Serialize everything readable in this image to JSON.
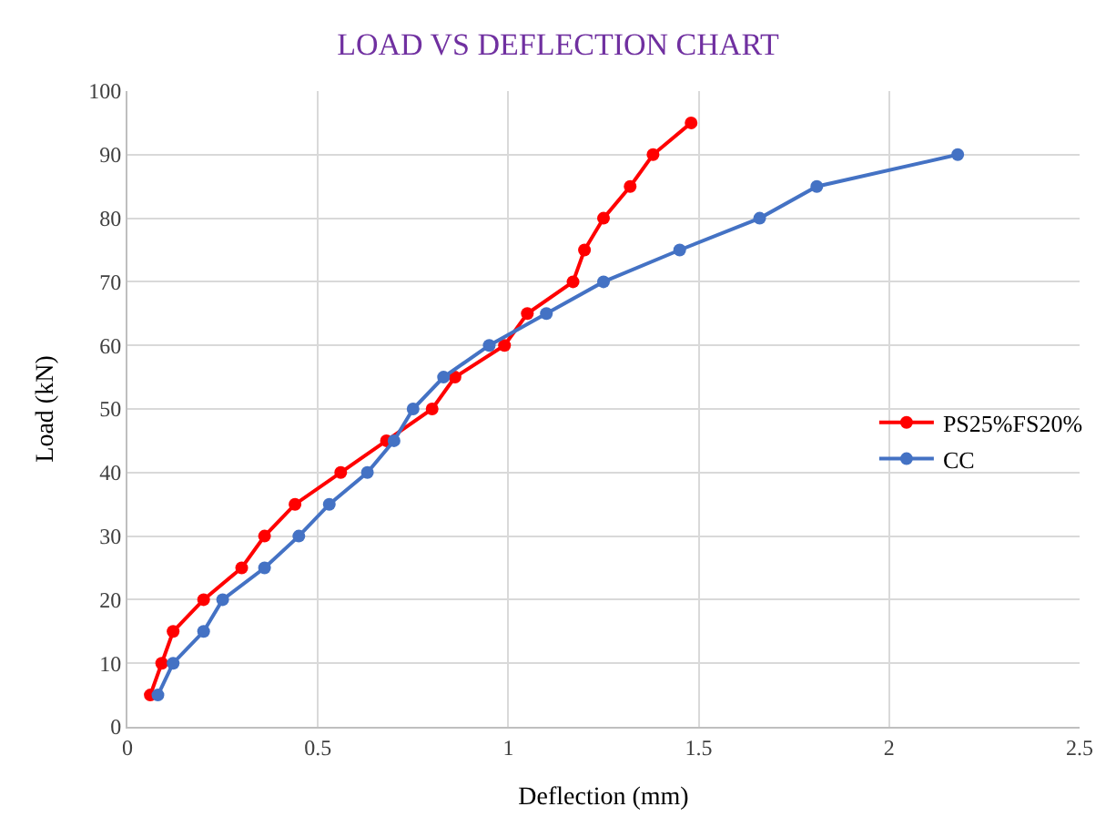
{
  "chart_data": {
    "type": "line",
    "title": "LOAD VS DEFLECTION CHART",
    "xlabel": "Deflection (mm)",
    "ylabel": "Load (kN)",
    "series": [
      {
        "name": "PS25%FS20%",
        "color": "#ff0000",
        "x": [
          0.06,
          0.09,
          0.12,
          0.2,
          0.3,
          0.36,
          0.44,
          0.56,
          0.68,
          0.8,
          0.86,
          0.99,
          1.05,
          1.17,
          1.2,
          1.25,
          1.32,
          1.38,
          1.48
        ],
        "values": [
          5,
          10,
          15,
          20,
          25,
          30,
          35,
          40,
          45,
          50,
          55,
          60,
          65,
          70,
          75,
          80,
          85,
          90,
          95
        ]
      },
      {
        "name": "CC",
        "color": "#4472c4",
        "x": [
          0.08,
          0.12,
          0.2,
          0.25,
          0.36,
          0.45,
          0.53,
          0.63,
          0.7,
          0.75,
          0.83,
          0.95,
          1.1,
          1.25,
          1.45,
          1.66,
          1.81,
          2.18
        ],
        "values": [
          5,
          10,
          15,
          20,
          25,
          30,
          35,
          40,
          45,
          50,
          55,
          60,
          65,
          70,
          75,
          80,
          85,
          90
        ]
      }
    ],
    "xlim": [
      0,
      2.5
    ],
    "xticks": [
      0,
      0.5,
      1,
      1.5,
      2,
      2.5
    ],
    "ylim": [
      0,
      100
    ],
    "yticks": [
      0,
      10,
      20,
      30,
      40,
      50,
      60,
      70,
      80,
      90,
      100
    ],
    "grid": true,
    "legend": "right",
    "marker": "circle",
    "line_style": "solid"
  }
}
